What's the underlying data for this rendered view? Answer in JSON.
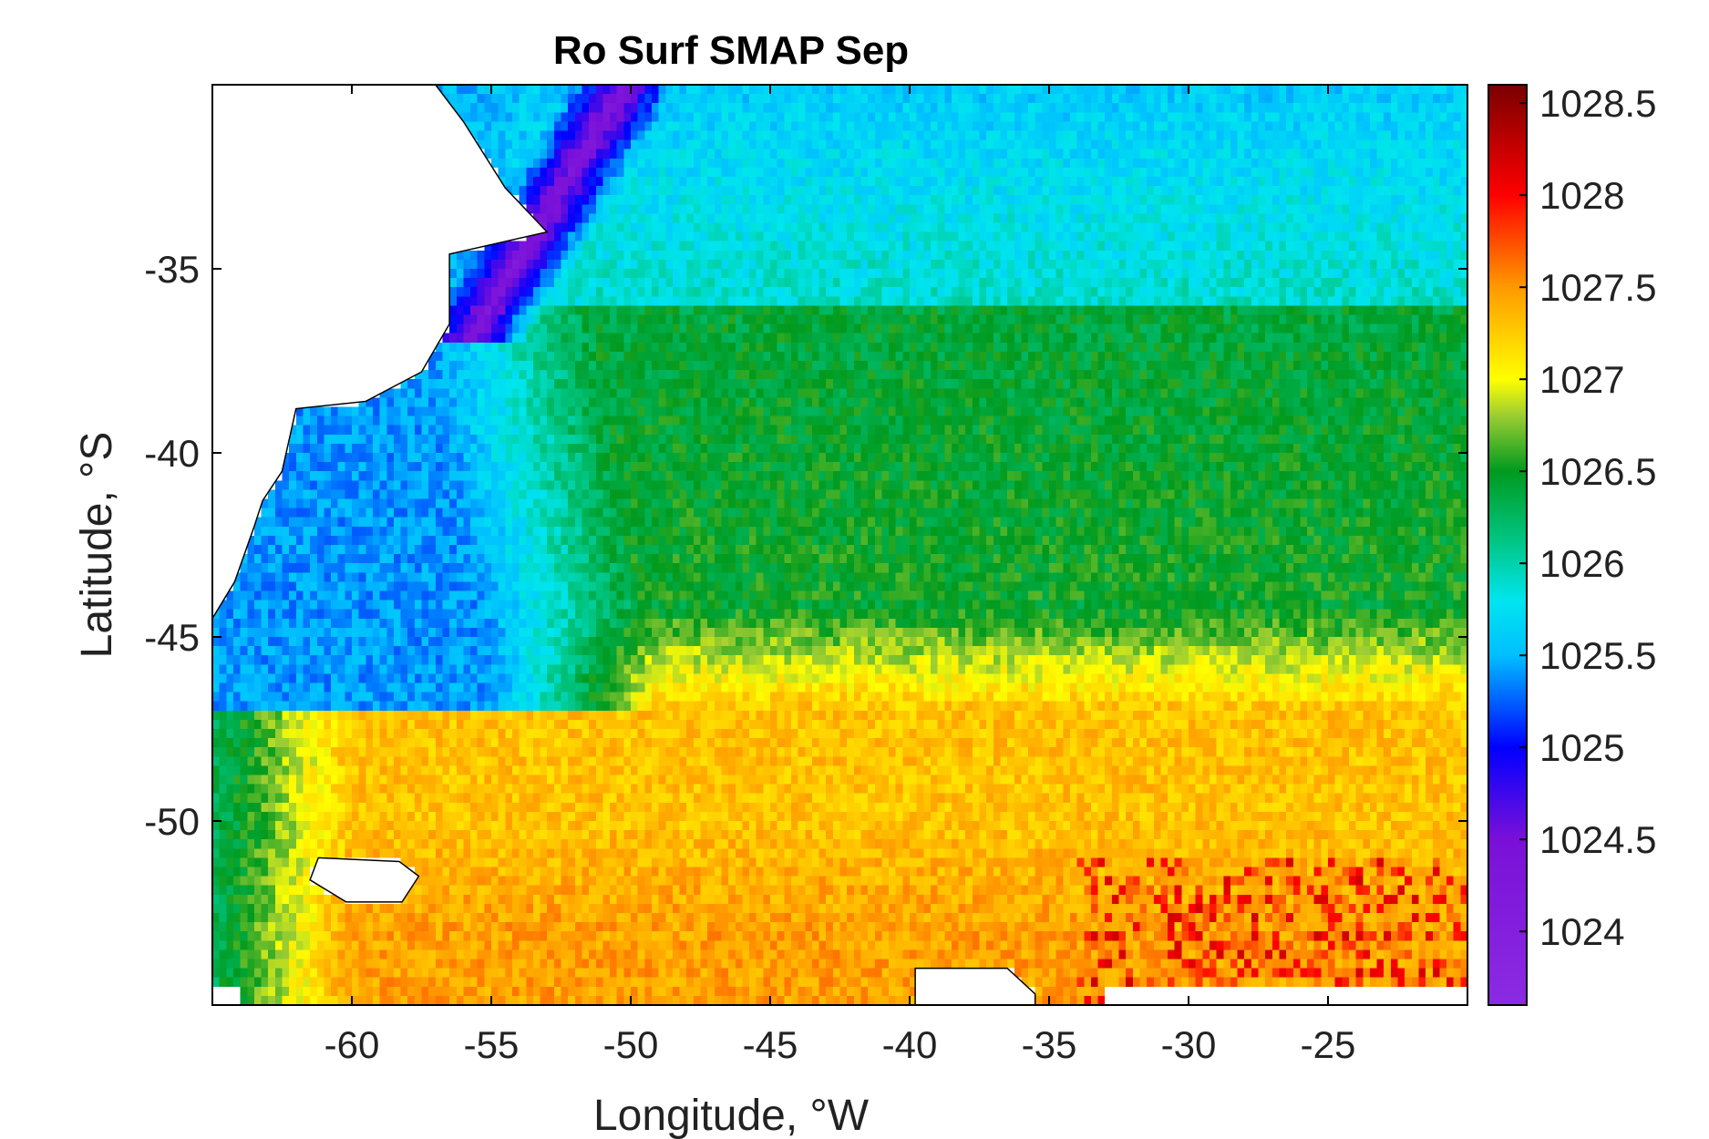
{
  "chart_data": {
    "type": "heatmap",
    "title": "Ro Surf SMAP Sep",
    "xlabel": "Longitude, °W",
    "ylabel": "Latitude, °S",
    "xlim": [
      -65,
      -20
    ],
    "ylim": [
      -55,
      -30
    ],
    "xticks": [
      -60,
      -55,
      -50,
      -45,
      -40,
      -35,
      -30,
      -25
    ],
    "xtick_labels": [
      "-60",
      "-55",
      "-50",
      "-45",
      "-40",
      "-35",
      "-30",
      "-25"
    ],
    "yticks": [
      -35,
      -40,
      -45,
      -50
    ],
    "ytick_labels": [
      "-35",
      "-40",
      "-45",
      "-50"
    ],
    "colorbar": {
      "range": [
        1023.6,
        1028.6
      ],
      "ticks": [
        1024,
        1024.5,
        1025,
        1025.5,
        1026,
        1026.5,
        1027,
        1027.5,
        1028,
        1028.5
      ],
      "tick_labels": [
        "1024",
        "1024.5",
        "1025",
        "1025.5",
        "1026",
        "1026.5",
        "1027",
        "1027.5",
        "1028",
        "1028.5"
      ],
      "colormap": [
        {
          "value": 1023.6,
          "color": "#8b2be2"
        },
        {
          "value": 1024.5,
          "color": "#7a10d8"
        },
        {
          "value": 1025.0,
          "color": "#0000ff"
        },
        {
          "value": 1025.5,
          "color": "#00bfff"
        },
        {
          "value": 1025.8,
          "color": "#00e5ee"
        },
        {
          "value": 1026.1,
          "color": "#00c88a"
        },
        {
          "value": 1026.5,
          "color": "#009a1e"
        },
        {
          "value": 1026.8,
          "color": "#9acd32"
        },
        {
          "value": 1027.0,
          "color": "#ffff00"
        },
        {
          "value": 1027.5,
          "color": "#ff9900"
        },
        {
          "value": 1028.0,
          "color": "#ff0000"
        },
        {
          "value": 1028.6,
          "color": "#7a0000"
        }
      ]
    },
    "field_summary": [
      {
        "region": "Brazil Current coastal band (north-west)",
        "value": 1024.3
      },
      {
        "region": "Shelf / coastal waters (west)",
        "value": 1025.4
      },
      {
        "region": "Northern open ocean (north of -36)",
        "value": 1025.9
      },
      {
        "region": "Frontal band (-37 to -44)",
        "value": 1026.4
      },
      {
        "region": "Southern waters (-45 to -55)",
        "value": 1027.3
      },
      {
        "region": "Southern patches (-51 to -54)",
        "value": 1027.8
      }
    ],
    "grid": false,
    "land_color": "#ffffff",
    "coastline_color": "#000000"
  }
}
